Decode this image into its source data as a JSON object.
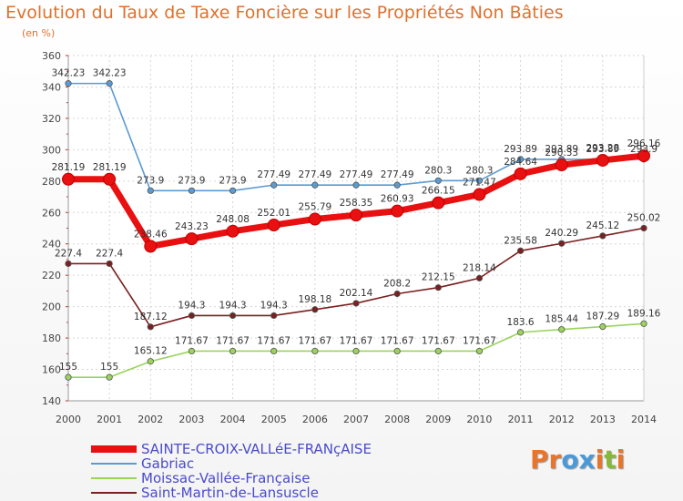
{
  "header": {
    "title": "Evolution du Taux de Taxe Foncière sur les Propriétés Non Bâties",
    "unit": "(en %)"
  },
  "logo": {
    "text": "Proxiti",
    "colors": [
      "#e8752b",
      "#e8752b",
      "#4a9ad9",
      "#4a9ad9",
      "#e8752b",
      "#86b83a",
      "#e8752b"
    ]
  },
  "chart_data": {
    "type": "line",
    "title": "Evolution du Taux de Taxe Foncière sur les Propriétés Non Bâties",
    "ylabel": "(en %)",
    "xlabel": "",
    "x": [
      "2000",
      "2001",
      "2002",
      "2003",
      "2004",
      "2005",
      "2006",
      "2007",
      "2008",
      "2009",
      "2010",
      "2011",
      "2012",
      "2013",
      "2014"
    ],
    "ylim": [
      140,
      360
    ],
    "yticks": [
      "140",
      "160",
      "180",
      "200",
      "220",
      "240",
      "260",
      "280",
      "300",
      "320",
      "340",
      "360"
    ],
    "grid": true,
    "legend_position": "bottom-left",
    "series": [
      {
        "name": "SAINTE-CROIX-VALLéE-FRANçAISE",
        "color": "#e81010",
        "values": [
          281.19,
          281.19,
          238.46,
          243.23,
          248.08,
          252.01,
          255.79,
          258.35,
          260.93,
          266.15,
          271.47,
          284.64,
          290.33,
          293.28,
          296.16
        ],
        "labels": [
          "281.19",
          "281.19",
          "238.46",
          "243.23",
          "248.08",
          "252.01",
          "255.79",
          "258.35",
          "260.93",
          "266.15",
          "271.47",
          "284.64",
          "290.33",
          "293.28",
          "296.16"
        ]
      },
      {
        "name": "Gabriac",
        "color": "#5b9bd3",
        "values": [
          342.23,
          342.23,
          273.9,
          273.9,
          273.9,
          277.49,
          277.49,
          277.49,
          277.49,
          280.3,
          280.3,
          293.89,
          293.89,
          293.89,
          293.9
        ],
        "labels": [
          "342.23",
          "342.23",
          "273.9",
          "273.9",
          "273.9",
          "277.49",
          "277.49",
          "277.49",
          "277.49",
          "280.3",
          "280.3",
          "293.89",
          "293.89",
          "293.89",
          "293.9"
        ]
      },
      {
        "name": "Moissac-Vallée-Française",
        "color": "#9ad45a",
        "values": [
          155,
          155,
          165.12,
          171.67,
          171.67,
          171.67,
          171.67,
          171.67,
          171.67,
          171.67,
          171.67,
          183.6,
          185.44,
          187.29,
          189.16
        ],
        "labels": [
          "155",
          "155",
          "165.12",
          "171.67",
          "171.67",
          "171.67",
          "171.67",
          "171.67",
          "171.67",
          "171.67",
          "171.67",
          "183.6",
          "185.44",
          "187.29",
          "189.16"
        ]
      },
      {
        "name": "Saint-Martin-de-Lansuscle",
        "color": "#7a2020",
        "values": [
          227.4,
          227.4,
          187.12,
          194.3,
          194.3,
          194.3,
          198.18,
          202.14,
          208.2,
          212.15,
          218.14,
          235.58,
          240.29,
          245.12,
          250.02
        ],
        "labels": [
          "227.4",
          "227.4",
          "187.12",
          "194.3",
          "194.3",
          "194.3",
          "198.18",
          "202.14",
          "208.2",
          "212.15",
          "218.14",
          "235.58",
          "240.29",
          "245.12",
          "250.02"
        ]
      }
    ]
  }
}
